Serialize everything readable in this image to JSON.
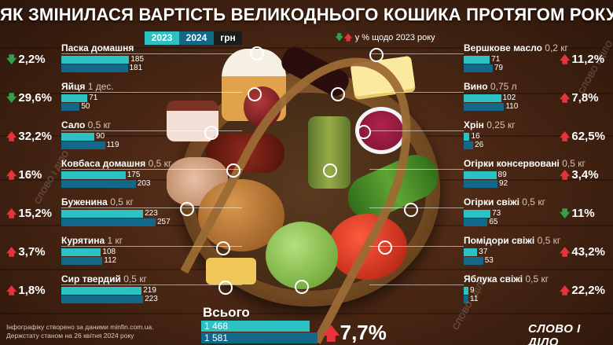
{
  "title": "ЯК ЗМІНИЛАСЯ ВАРТІСТЬ ВЕЛИКОДНЬОГО КОШИКА ПРОТЯГОМ РОКУ",
  "legend": {
    "year_2023": "2023",
    "year_2024": "2024",
    "currency": "грн",
    "trend_text": "у % щодо 2023 року"
  },
  "colors": {
    "bar_2023": "#2cc1c3",
    "bar_2024": "#13688a",
    "up": "#e8333b",
    "down": "#2ea34a"
  },
  "items_left": [
    {
      "name": "Паска домашня",
      "unit": "",
      "v2023": 185,
      "v2024": 181,
      "pct": "2,2%",
      "dir": "down"
    },
    {
      "name": "Яйця",
      "unit": "1 дес.",
      "v2023": 71,
      "v2024": 50,
      "pct": "29,6%",
      "dir": "down"
    },
    {
      "name": "Сало",
      "unit": "0,5 кг",
      "v2023": 90,
      "v2024": 119,
      "pct": "32,2%",
      "dir": "up"
    },
    {
      "name": "Ковбаса домашня",
      "unit": "0,5 кг",
      "v2023": 175,
      "v2024": 203,
      "pct": "16%",
      "dir": "up"
    },
    {
      "name": "Буженина",
      "unit": "0,5 кг",
      "v2023": 223,
      "v2024": 257,
      "pct": "15,2%",
      "dir": "up"
    },
    {
      "name": "Курятина",
      "unit": "1 кг",
      "v2023": 108,
      "v2024": 112,
      "pct": "3,7%",
      "dir": "up"
    },
    {
      "name": "Сир твердий",
      "unit": "0,5 кг",
      "v2023": 219,
      "v2024": 223,
      "pct": "1,8%",
      "dir": "up"
    }
  ],
  "items_right": [
    {
      "name": "Вершкове масло",
      "unit": "0,2 кг",
      "v2023": 71,
      "v2024": 79,
      "pct": "11,2%",
      "dir": "up"
    },
    {
      "name": "Вино",
      "unit": "0,75 л",
      "v2023": 102,
      "v2024": 110,
      "pct": "7,8%",
      "dir": "up"
    },
    {
      "name": "Хрін",
      "unit": "0,25 кг",
      "v2023": 16,
      "v2024": 26,
      "pct": "62,5%",
      "dir": "up"
    },
    {
      "name": "Огірки консервовані",
      "unit": "0,5 кг",
      "v2023": 89,
      "v2024": 92,
      "pct": "3,4%",
      "dir": "up"
    },
    {
      "name": "Огірки свіжі",
      "unit": "0,5 кг",
      "v2023": 73,
      "v2024": 65,
      "pct": "11%",
      "dir": "down"
    },
    {
      "name": "Помідори свіжі",
      "unit": "0,5 кг",
      "v2023": 37,
      "v2024": 53,
      "pct": "43,2%",
      "dir": "up"
    },
    {
      "name": "Яблука свіжі",
      "unit": "0,5 кг",
      "v2023": 9,
      "v2024": 11,
      "pct": "22,2%",
      "dir": "up"
    }
  ],
  "total": {
    "label": "Всього",
    "v2023": "1 468",
    "v2024": "1 581",
    "pct": "7,7%",
    "dir": "up"
  },
  "footer": {
    "line1": "Інфографіку створено за даними minfin.com.ua.",
    "line2": "Держстату станом на 26 квітня 2024 року"
  },
  "brand": "СЛОВО І ДІЛО",
  "chart_data": {
    "type": "bar",
    "categories": [
      "Паска домашня",
      "Яйця",
      "Сало",
      "Ковбаса домашня",
      "Буженина",
      "Курятина",
      "Сир твердий",
      "Вершкове масло",
      "Вино",
      "Хрін",
      "Огірки консервовані",
      "Огірки свіжі",
      "Помідори свіжі",
      "Яблука свіжі"
    ],
    "series": [
      {
        "name": "2023",
        "values": [
          185,
          71,
          90,
          175,
          223,
          108,
          219,
          71,
          102,
          16,
          89,
          73,
          37,
          9
        ]
      },
      {
        "name": "2024",
        "values": [
          181,
          50,
          119,
          203,
          257,
          112,
          223,
          79,
          110,
          26,
          92,
          65,
          53,
          11
        ]
      }
    ],
    "title": "ЯК ЗМІНИЛАСЯ ВАРТІСТЬ ВЕЛИКОДНЬОГО КОШИКА ПРОТЯГОМ РОКУ",
    "ylabel": "грн"
  }
}
